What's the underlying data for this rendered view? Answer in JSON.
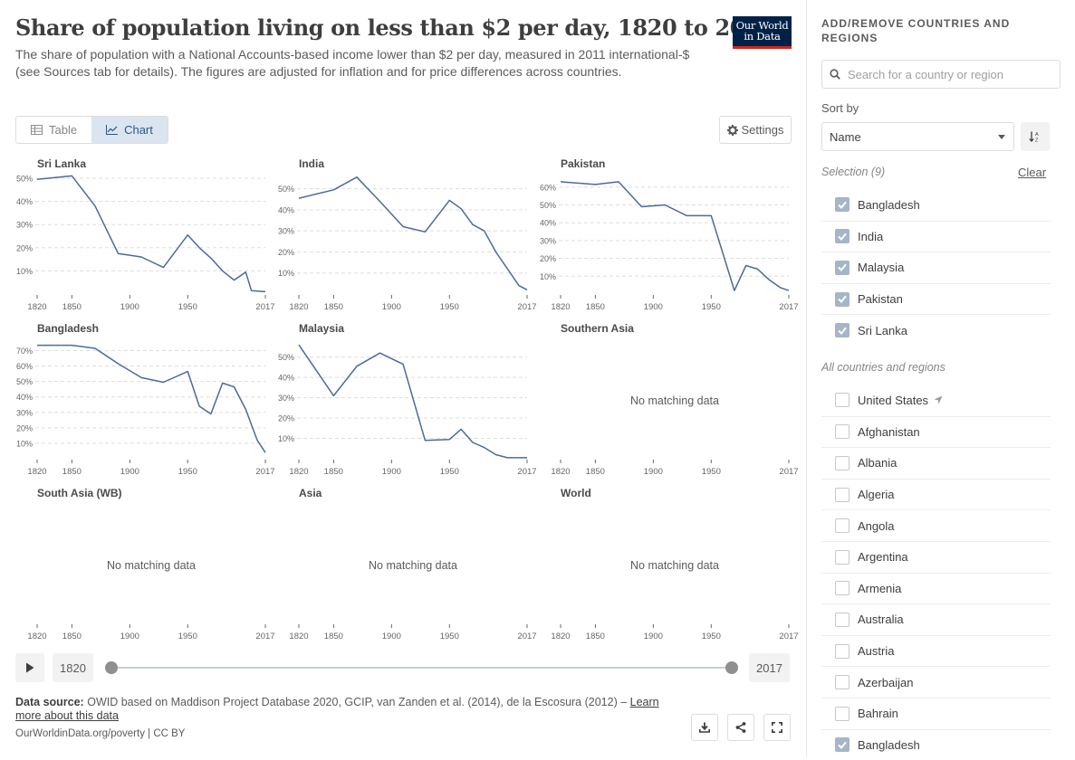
{
  "header": {
    "title": "Share of population living on less than $2 per day, 1820 to 2017",
    "subtitle": "The share of population with a National Accounts-based income lower than $2 per day, measured in 2011 international-$ (see Sources tab for details). The figures are adjusted for inflation and for price differences across countries.",
    "logo_line1": "Our World",
    "logo_line2": "in Data"
  },
  "toolbar": {
    "table_label": "Table",
    "chart_label": "Chart",
    "active_tab": "Chart",
    "settings_label": "Settings"
  },
  "timeline": {
    "start_year": "1820",
    "end_year": "2017",
    "min": 1820,
    "max": 2017
  },
  "footer": {
    "source_label": "Data source:",
    "source_text": "OWID based on Maddison Project Database 2020, GCIP, van Zanden et al. (2014), de la Escosura (2012) –",
    "learn_more": "Learn more about this data",
    "url": "OurWorldinData.org/poverty | CC BY"
  },
  "sidebar": {
    "title": "ADD/REMOVE COUNTRIES AND REGIONS",
    "search_placeholder": "Search for a country or region",
    "sort_label": "Sort by",
    "sort_value": "Name",
    "selection_label": "Selection (9)",
    "clear_label": "Clear",
    "selected": [
      "Bangladesh",
      "India",
      "Malaysia",
      "Pakistan",
      "Sri Lanka"
    ],
    "all_label": "All countries and regions",
    "all": [
      {
        "name": "United States",
        "checked": false,
        "located": true
      },
      {
        "name": "Afghanistan",
        "checked": false
      },
      {
        "name": "Albania",
        "checked": false
      },
      {
        "name": "Algeria",
        "checked": false
      },
      {
        "name": "Angola",
        "checked": false
      },
      {
        "name": "Argentina",
        "checked": false
      },
      {
        "name": "Armenia",
        "checked": false
      },
      {
        "name": "Australia",
        "checked": false
      },
      {
        "name": "Austria",
        "checked": false
      },
      {
        "name": "Azerbaijan",
        "checked": false
      },
      {
        "name": "Bahrain",
        "checked": false
      },
      {
        "name": "Bangladesh",
        "checked": true
      }
    ]
  },
  "chart_data": {
    "type": "line",
    "layout": "small-multiples",
    "line_color": "#4c6a9c",
    "x_ticks": [
      1820,
      1850,
      1900,
      1950,
      2017
    ],
    "xlim": [
      1820,
      2017
    ],
    "no_data_text": "No matching data",
    "panels": [
      {
        "name": "Sri Lanka",
        "ylim": [
          0,
          50
        ],
        "y_ticks": [
          10,
          20,
          30,
          40,
          50
        ],
        "points": [
          [
            1820,
            49.5
          ],
          [
            1850,
            51
          ],
          [
            1870,
            38
          ],
          [
            1890,
            17.5
          ],
          [
            1910,
            16
          ],
          [
            1929,
            11.5
          ],
          [
            1950,
            25.5
          ],
          [
            1960,
            20
          ],
          [
            1970,
            15.5
          ],
          [
            1980,
            10
          ],
          [
            1990,
            6
          ],
          [
            2000,
            9.5
          ],
          [
            2005,
            1.5
          ],
          [
            2017,
            1
          ]
        ]
      },
      {
        "name": "India",
        "ylim": [
          0,
          55
        ],
        "y_ticks": [
          10,
          20,
          30,
          40,
          50
        ],
        "points": [
          [
            1820,
            45.5
          ],
          [
            1850,
            49.5
          ],
          [
            1870,
            55.5
          ],
          [
            1890,
            44
          ],
          [
            1910,
            32
          ],
          [
            1929,
            29.5
          ],
          [
            1950,
            44.5
          ],
          [
            1960,
            40.5
          ],
          [
            1970,
            33
          ],
          [
            1980,
            30
          ],
          [
            1990,
            20
          ],
          [
            2000,
            12
          ],
          [
            2010,
            4
          ],
          [
            2017,
            2
          ]
        ]
      },
      {
        "name": "Pakistan",
        "ylim": [
          0,
          65
        ],
        "y_ticks": [
          10,
          20,
          30,
          40,
          50,
          60
        ],
        "points": [
          [
            1820,
            63
          ],
          [
            1850,
            61.5
          ],
          [
            1870,
            63
          ],
          [
            1890,
            49
          ],
          [
            1910,
            50
          ],
          [
            1929,
            44
          ],
          [
            1950,
            44
          ],
          [
            1970,
            2
          ],
          [
            1980,
            16
          ],
          [
            1990,
            14
          ],
          [
            2000,
            8
          ],
          [
            2010,
            3.5
          ],
          [
            2017,
            2
          ]
        ]
      },
      {
        "name": "Bangladesh",
        "ylim": [
          0,
          75
        ],
        "y_ticks": [
          10,
          20,
          30,
          40,
          50,
          60,
          70
        ],
        "points": [
          [
            1820,
            73.5
          ],
          [
            1850,
            73.5
          ],
          [
            1870,
            71.5
          ],
          [
            1890,
            61.5
          ],
          [
            1910,
            52.5
          ],
          [
            1929,
            49.5
          ],
          [
            1950,
            56.5
          ],
          [
            1960,
            34
          ],
          [
            1970,
            29
          ],
          [
            1980,
            49
          ],
          [
            1990,
            46.5
          ],
          [
            2000,
            32
          ],
          [
            2010,
            12
          ],
          [
            2017,
            4
          ]
        ]
      },
      {
        "name": "Malaysia",
        "ylim": [
          0,
          57
        ],
        "y_ticks": [
          10,
          20,
          30,
          40,
          50
        ],
        "points": [
          [
            1820,
            56
          ],
          [
            1850,
            31
          ],
          [
            1870,
            45.5
          ],
          [
            1890,
            52
          ],
          [
            1910,
            46.5
          ],
          [
            1929,
            9
          ],
          [
            1950,
            9.5
          ],
          [
            1960,
            14.5
          ],
          [
            1970,
            8
          ],
          [
            1980,
            5.5
          ],
          [
            1990,
            2
          ],
          [
            2000,
            0.5
          ],
          [
            2017,
            0.5
          ]
        ]
      },
      {
        "name": "Southern Asia",
        "no_data": true
      },
      {
        "name": "South Asia (WB)",
        "no_data": true
      },
      {
        "name": "Asia",
        "no_data": true
      },
      {
        "name": "World",
        "no_data": true
      }
    ]
  }
}
